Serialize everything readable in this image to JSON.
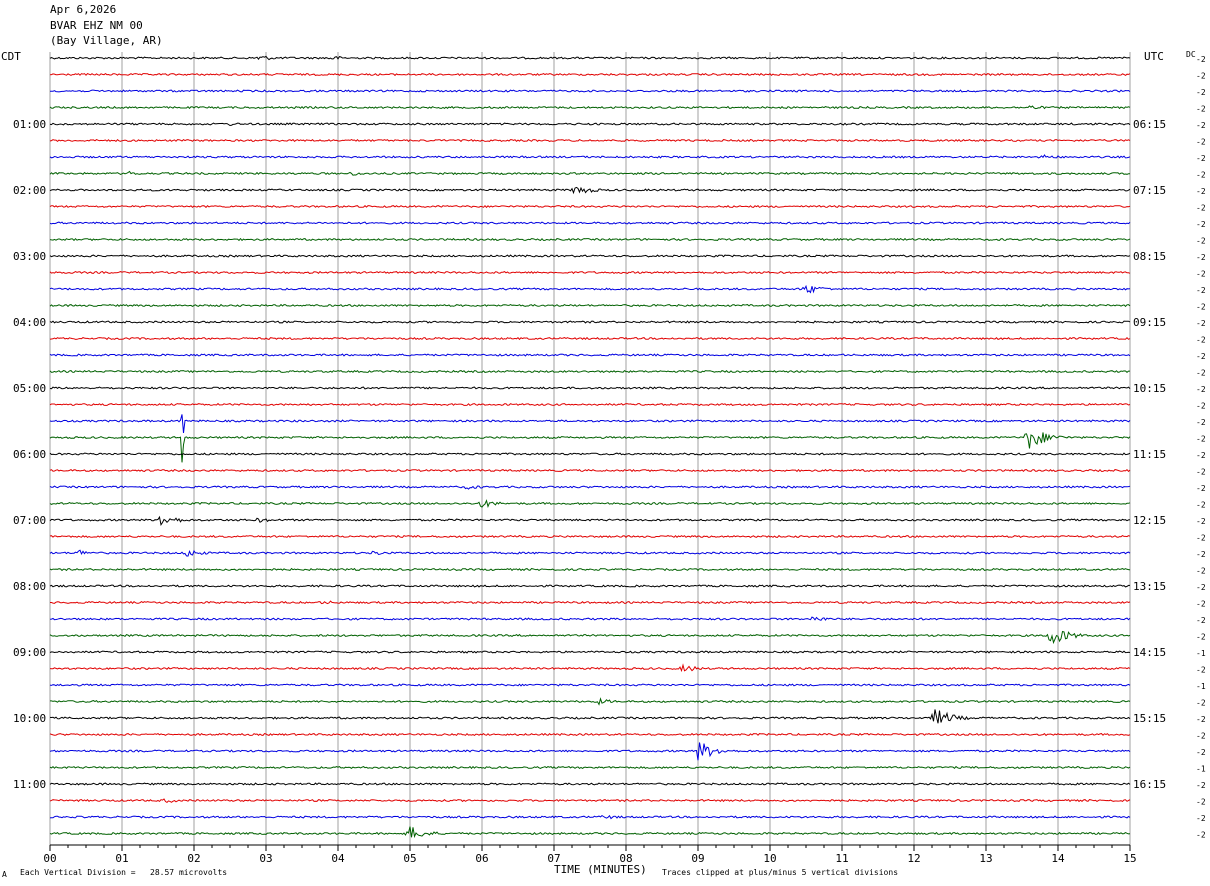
{
  "header": {
    "date": "Apr 6,2026",
    "station": "BVAR EHZ NM 00",
    "location": "(Bay Village, AR)"
  },
  "left_timezone": "CDT",
  "right_timezone": "UTC",
  "dc_label": "DC",
  "footer": {
    "scale_note": "Each Vertical Division =   28.57 microvolts",
    "xlabel": "TIME (MINUTES)",
    "clip_note": "Traces clipped at plus/minus 5 vertical divisions",
    "corner_mark": "A"
  },
  "chart_data": {
    "type": "line",
    "xlabel": "TIME (MINUTES)",
    "xlim": [
      0,
      15
    ],
    "x_ticks": [
      "00",
      "01",
      "02",
      "03",
      "04",
      "05",
      "06",
      "07",
      "08",
      "09",
      "10",
      "11",
      "12",
      "13",
      "14",
      "15"
    ],
    "left_hour_labels": [
      "01:00",
      "02:00",
      "03:00",
      "04:00",
      "05:00",
      "06:00",
      "07:00",
      "08:00",
      "09:00",
      "10:00",
      "11:00"
    ],
    "right_hour_labels": [
      "06:15",
      "07:15",
      "08:15",
      "09:15",
      "10:15",
      "11:15",
      "12:15",
      "13:15",
      "14:15",
      "15:15",
      "16:15"
    ],
    "trace_count": 48,
    "traces_per_hour": 4,
    "trace_colors": [
      "#000000",
      "#e00000",
      "#0000e0",
      "#006000"
    ],
    "right_dc_values": [
      "-2",
      "-2",
      "-2",
      "-2",
      "-2",
      "-2",
      "-2",
      "-2",
      "-2",
      "-2",
      "-2",
      "-2",
      "-2",
      "-2",
      "-2",
      "-2",
      "-2",
      "-2",
      "-2",
      "-2",
      "-2",
      "-2",
      "-2",
      "-2",
      "-2",
      "-2",
      "-2",
      "-2",
      "-2",
      "-2",
      "-2",
      "-2",
      "-2",
      "-2",
      "-2",
      "-2",
      "-1",
      "-2",
      "-1",
      "-2",
      "-2",
      "-2",
      "-2",
      "-1",
      "-2",
      "-2",
      "-2",
      "-2"
    ],
    "events": [
      {
        "trace": 0,
        "minute": 2.9,
        "amp": 1.5
      },
      {
        "trace": 0,
        "minute": 3.9,
        "amp": 1.2
      },
      {
        "trace": 3,
        "minute": 13.6,
        "amp": 1.2
      },
      {
        "trace": 4,
        "minute": 2.5,
        "amp": 0.8
      },
      {
        "trace": 6,
        "minute": 13.8,
        "amp": 1.3
      },
      {
        "trace": 7,
        "minute": 1.1,
        "amp": 1.0
      },
      {
        "trace": 7,
        "minute": 4.2,
        "amp": 1.0
      },
      {
        "trace": 8,
        "minute": 7.3,
        "amp": 2.5
      },
      {
        "trace": 14,
        "minute": 10.5,
        "amp": 2.5
      },
      {
        "trace": 22,
        "minute": 1.85,
        "amp": 10.0
      },
      {
        "trace": 23,
        "minute": 1.85,
        "amp": 10.0
      },
      {
        "trace": 23,
        "minute": 13.6,
        "amp": 6.0
      },
      {
        "trace": 26,
        "minute": 5.8,
        "amp": 1.2
      },
      {
        "trace": 27,
        "minute": 6.0,
        "amp": 2.0
      },
      {
        "trace": 28,
        "minute": 1.5,
        "amp": 3.5
      },
      {
        "trace": 28,
        "minute": 2.9,
        "amp": 1.2
      },
      {
        "trace": 30,
        "minute": 0.4,
        "amp": 1.5
      },
      {
        "trace": 30,
        "minute": 1.9,
        "amp": 2.0
      },
      {
        "trace": 30,
        "minute": 4.5,
        "amp": 1.2
      },
      {
        "trace": 33,
        "minute": 3.8,
        "amp": 1.0
      },
      {
        "trace": 34,
        "minute": 10.6,
        "amp": 1.5
      },
      {
        "trace": 35,
        "minute": 13.9,
        "amp": 5.0
      },
      {
        "trace": 37,
        "minute": 8.8,
        "amp": 1.8
      },
      {
        "trace": 39,
        "minute": 7.6,
        "amp": 1.5
      },
      {
        "trace": 40,
        "minute": 12.3,
        "amp": 4.5
      },
      {
        "trace": 42,
        "minute": 9.0,
        "amp": 5.0
      },
      {
        "trace": 45,
        "minute": 1.6,
        "amp": 1.2
      },
      {
        "trace": 46,
        "minute": 7.7,
        "amp": 1.2
      },
      {
        "trace": 47,
        "minute": 5.0,
        "amp": 3.5
      }
    ]
  }
}
